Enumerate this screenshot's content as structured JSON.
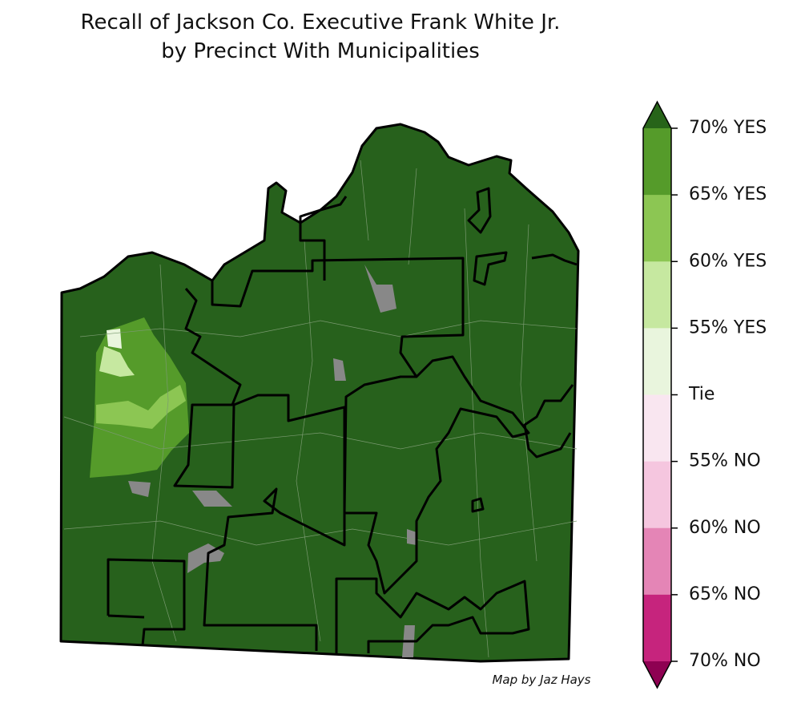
{
  "title": [
    "Recall of Jackson Co. Executive Frank White Jr.",
    "by Precinct With Municipalities"
  ],
  "legend": {
    "labels": [
      "70% YES",
      "65% YES",
      "60% YES",
      "55% YES",
      "Tie",
      "55% NO",
      "60% NO",
      "65% NO",
      "70% NO"
    ],
    "colors": [
      "#559b2a",
      "#8cc653",
      "#c6e8a0",
      "#e9f5dd",
      "#f9e6f0",
      "#f5c6df",
      "#e485b6",
      "#c6247d"
    ],
    "over_color": "#276419",
    "under_color": "#8e0152"
  },
  "credit": "Map by Jaz Hays"
}
